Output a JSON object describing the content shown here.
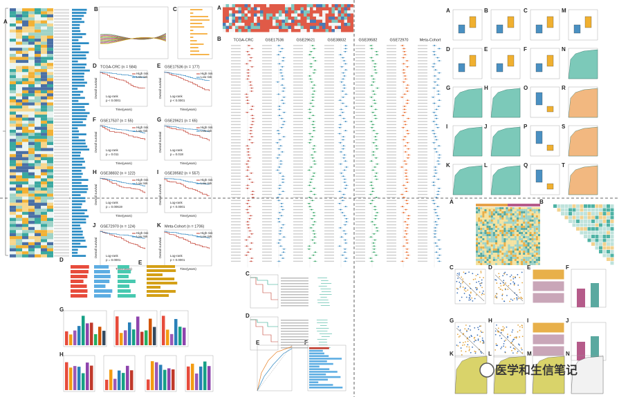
{
  "left": {
    "panel_letters": [
      "A",
      "B",
      "C"
    ],
    "km_plots": [
      {
        "letter": "D",
        "title": "TCGA-CRC (n = 584)",
        "p": "p < 0.0001"
      },
      {
        "letter": "E",
        "title": "GSE17536 (n = 177)",
        "p": "p < 0.0001"
      },
      {
        "letter": "F",
        "title": "GSE17537 (n = 55)",
        "p": "p = 0.011"
      },
      {
        "letter": "G",
        "title": "GSE29621 (n = 65)",
        "p": "p = 0.018"
      },
      {
        "letter": "H",
        "title": "GSE38832 (n = 122)",
        "p": "p = 0.00619"
      },
      {
        "letter": "I",
        "title": "GSE39582 (n = 557)",
        "p": "p < 0.0001"
      },
      {
        "letter": "J",
        "title": "GSE72970 (n = 124)",
        "p": "p = 0.0001"
      },
      {
        "letter": "K",
        "title": "Meta-Cohort (n = 1706)",
        "p": "p < 0.0001"
      }
    ],
    "km_logrank": "Log-rank",
    "km_legend": [
      "High risk",
      "Low risk"
    ],
    "km_ylabel": "Overall survival",
    "km_xlabel": "Time(years)",
    "bottom_letters": [
      "D",
      "E",
      "G",
      "H"
    ]
  },
  "middle": {
    "letters": [
      "A",
      "B"
    ],
    "forest_titles": [
      "TCGA-CRC",
      "GSE17536",
      "GSE29621",
      "GSE38832",
      "GSE39582",
      "GSE72970",
      "Meta-Cohort"
    ],
    "bottom_letters": [
      "C",
      "D",
      "E",
      "F"
    ]
  },
  "right_top": {
    "letters": [
      "A",
      "B",
      "C",
      "M",
      "D",
      "E",
      "F",
      "N",
      "G",
      "H",
      "O",
      "R",
      "I",
      "J",
      "P",
      "S",
      "K",
      "L",
      "Q",
      "T"
    ]
  },
  "right_bottom": {
    "letters": [
      "A",
      "B",
      "C",
      "D",
      "E",
      "F",
      "G",
      "H",
      "I",
      "J",
      "K",
      "L",
      "M",
      "N"
    ]
  },
  "watermark": "医学和生信笔记"
}
